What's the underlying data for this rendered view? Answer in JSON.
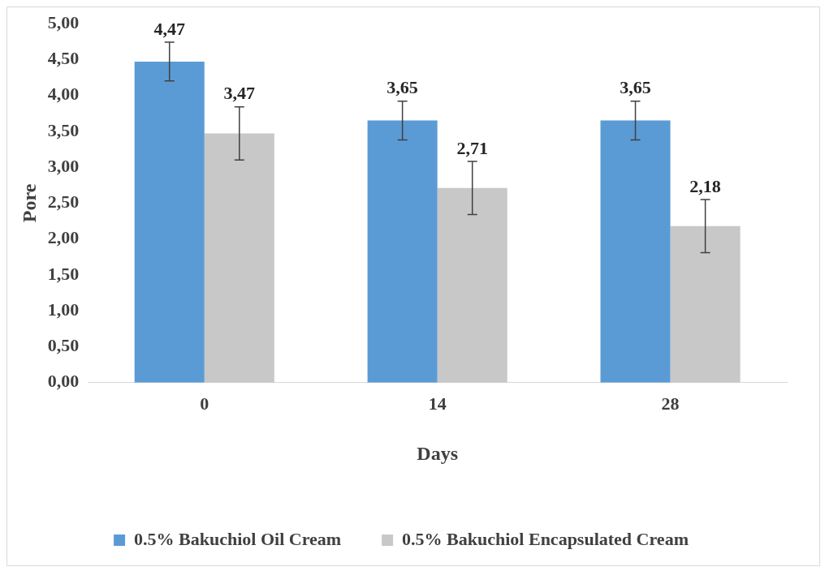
{
  "chart_data": {
    "type": "bar",
    "xlabel": "Days",
    "ylabel": "Pore",
    "categories": [
      "0",
      "14",
      "28"
    ],
    "series": [
      {
        "name": "0.5% Bakuchiol Oil Cream",
        "color": "#5b9bd5",
        "values": [
          4.47,
          3.65,
          3.65
        ],
        "errors": [
          0.27,
          0.27,
          0.27
        ],
        "value_labels": [
          "4,47",
          "3,65",
          "3,65"
        ]
      },
      {
        "name": "0.5% Bakuchiol Encapsulated Cream",
        "color": "#c8c8c8",
        "values": [
          3.47,
          2.71,
          2.18
        ],
        "errors": [
          0.37,
          0.37,
          0.37
        ],
        "value_labels": [
          "3,47",
          "2,71",
          "2,18"
        ]
      }
    ],
    "ylim": [
      0,
      5
    ],
    "yticks": [
      {
        "value": 0,
        "label": "0,00"
      },
      {
        "value": 0.5,
        "label": "0,50"
      },
      {
        "value": 1,
        "label": "1,00"
      },
      {
        "value": 1.5,
        "label": "1,50"
      },
      {
        "value": 2,
        "label": "2,00"
      },
      {
        "value": 2.5,
        "label": "2,50"
      },
      {
        "value": 3,
        "label": "3,00"
      },
      {
        "value": 3.5,
        "label": "3,50"
      },
      {
        "value": 4,
        "label": "4,00"
      },
      {
        "value": 4.5,
        "label": "4,50"
      },
      {
        "value": 5,
        "label": "5,00"
      }
    ],
    "grid": false,
    "legend": "bottom"
  }
}
